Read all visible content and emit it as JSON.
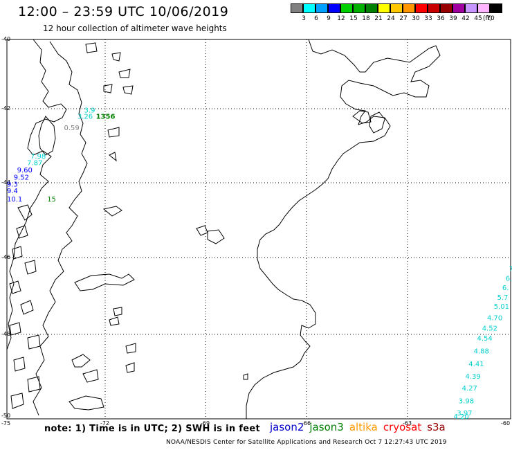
{
  "header": {
    "title": "12:00 – 23:59 UTC 10/06/2019",
    "subtitle": "12 hour collection of altimeter wave heights"
  },
  "colorbar": {
    "unit": "(ft)",
    "swatches": [
      {
        "color": "#808080",
        "label": "3"
      },
      {
        "color": "#00ffff",
        "label": "6"
      },
      {
        "color": "#00a0ff",
        "label": "9"
      },
      {
        "color": "#0000ff",
        "label": "12"
      },
      {
        "color": "#00d000",
        "label": "15"
      },
      {
        "color": "#00b000",
        "label": "18"
      },
      {
        "color": "#008000",
        "label": "21"
      },
      {
        "color": "#ffff00",
        "label": "24"
      },
      {
        "color": "#ffc800",
        "label": "27"
      },
      {
        "color": "#ff9600",
        "label": "30"
      },
      {
        "color": "#ff0000",
        "label": "33"
      },
      {
        "color": "#c80000",
        "label": "36"
      },
      {
        "color": "#960000",
        "label": "39"
      },
      {
        "color": "#a000a0",
        "label": "42"
      },
      {
        "color": "#c896ff",
        "label": "45"
      },
      {
        "color": "#ffb4ff",
        "label": "70"
      },
      {
        "color": "#000000",
        "label": ""
      }
    ]
  },
  "axes": {
    "lat_labels": [
      "-40",
      "-42",
      "-44",
      "-46",
      "-48",
      "-50"
    ],
    "lon_labels": [
      "-75",
      "-72",
      "-69",
      "-66",
      "-63",
      "-60"
    ]
  },
  "observations": [
    {
      "text": "1356",
      "color": "#008000",
      "lon": -72.35,
      "lat": -42.27
    },
    {
      "text": "3.26",
      "color": "#00d0d0",
      "lon": -72.9,
      "lat": -42.27
    },
    {
      "text": "3.9",
      "color": "#00d0d0",
      "lon": -72.7,
      "lat": -42.1
    },
    {
      "text": "0.59",
      "color": "#808080",
      "lon": -73.3,
      "lat": -42.58
    },
    {
      "text": "7.98",
      "color": "#00d0d0",
      "lon": -74.3,
      "lat": -43.35
    },
    {
      "text": "7.87",
      "color": "#00d0d0",
      "lon": -74.4,
      "lat": -43.52
    },
    {
      "text": "9.60",
      "color": "#0000ff",
      "lon": -74.7,
      "lat": -43.72
    },
    {
      "text": "9.52",
      "color": "#0000ff",
      "lon": -74.8,
      "lat": -43.92
    },
    {
      "text": "9.3",
      "color": "#0000ff",
      "lon": -75.0,
      "lat": -44.1
    },
    {
      "text": "9.4",
      "color": "#0000ff",
      "lon": -75.2,
      "lat": -44.28
    },
    {
      "text": "10.1",
      "color": "#0000ff",
      "lon": -75.3,
      "lat": -44.5
    },
    {
      "text": "15",
      "color": "#008000",
      "lon": -73.8,
      "lat": -44.5
    },
    {
      "text": "7",
      "color": "#00d0d0",
      "lon": -60.05,
      "lat": -46.35
    },
    {
      "text": "6.",
      "color": "#00d0d0",
      "lon": -60.15,
      "lat": -46.6
    },
    {
      "text": "6.",
      "color": "#00d0d0",
      "lon": -60.25,
      "lat": -46.85
    },
    {
      "text": "5.7",
      "color": "#00d0d0",
      "lon": -60.4,
      "lat": -47.1
    },
    {
      "text": "5.01",
      "color": "#00d0d0",
      "lon": -60.5,
      "lat": -47.33
    },
    {
      "text": "4.70",
      "color": "#00d0d0",
      "lon": -60.7,
      "lat": -47.63
    },
    {
      "text": "4.52",
      "color": "#00d0d0",
      "lon": -60.85,
      "lat": -47.9
    },
    {
      "text": "4.54",
      "color": "#00d0d0",
      "lon": -61.0,
      "lat": -48.15
    },
    {
      "text": "4.88",
      "color": "#00d0d0",
      "lon": -61.1,
      "lat": -48.45
    },
    {
      "text": "4.41",
      "color": "#00d0d0",
      "lon": -61.25,
      "lat": -48.75
    },
    {
      "text": "4.39",
      "color": "#00d0d0",
      "lon": -61.35,
      "lat": -49.05
    },
    {
      "text": "4.27",
      "color": "#00d0d0",
      "lon": -61.45,
      "lat": -49.33
    },
    {
      "text": "3.98",
      "color": "#00d0d0",
      "lon": -61.55,
      "lat": -49.63
    },
    {
      "text": "3.97",
      "color": "#00d0d0",
      "lon": -61.6,
      "lat": -49.92
    },
    {
      "text": "4.20",
      "color": "#00d0d0",
      "lon": -61.7,
      "lat": -50.2
    }
  ],
  "footer": {
    "note": "note:  1) Time is in UTC; 2) SWH is in feet",
    "satellites": [
      {
        "name": "jason2",
        "color": "#0000cc"
      },
      {
        "name": "jason3",
        "color": "#008000"
      },
      {
        "name": "altika",
        "color": "#ff9900"
      },
      {
        "name": "cryosat",
        "color": "#ff0000"
      },
      {
        "name": "s3a",
        "color": "#990000"
      }
    ],
    "credit": "NOAA/NESDIS Center for Satellite Applications and Research    Oct  7 12:27:43 UTC 2019"
  }
}
